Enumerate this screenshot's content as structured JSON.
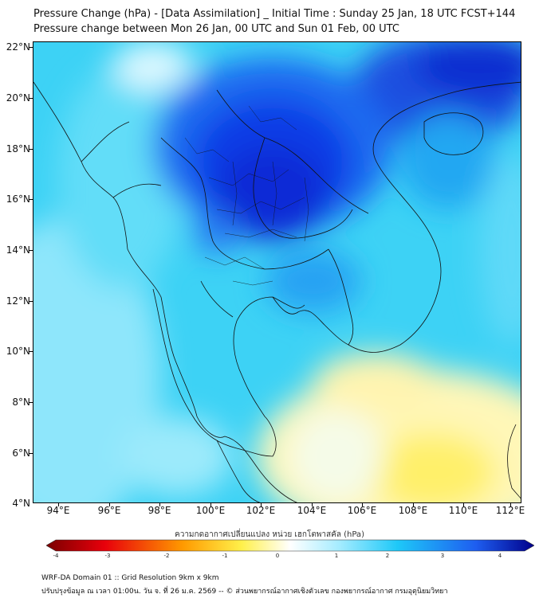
{
  "header": {
    "title_line1": "Pressure Change (hPa) - [Data Assimilation] _ Initial Time : Sunday 25 Jan, 18 UTC FCST+144",
    "title_line2": "Pressure change between Mon 26 Jan, 00 UTC and Sun 01 Feb, 00 UTC"
  },
  "map": {
    "lat_labels": [
      "22°N",
      "20°N",
      "18°N",
      "16°N",
      "14°N",
      "12°N",
      "10°N",
      "8°N",
      "6°N",
      "4°N"
    ],
    "lon_labels": [
      "94°E",
      "96°E",
      "98°E",
      "100°E",
      "102°E",
      "104°E",
      "106°E",
      "108°E",
      "110°E",
      "112°E"
    ]
  },
  "colorbar": {
    "label": "ความกดอากาศเปลี่ยนแปลง หน่วย เฮกโตพาสคัล (hPa)",
    "tick_labels": [
      "-4",
      "-3",
      "-2",
      "-1",
      "0",
      "1",
      "2",
      "3",
      "4"
    ],
    "colors": {
      "min": "#7a0000",
      "red": "#e8000b",
      "orange": "#ff9a00",
      "yellow": "#fff04a",
      "zero": "#ffffff",
      "light_blue": "#a5ecff",
      "cyan": "#1ec8f8",
      "blue": "#1e5ef0",
      "max": "#00008b"
    }
  },
  "footer": {
    "line1": "WRF-DA Domain 01 :: Grid Resolution 9km x 9km",
    "line2": "ปรับปรุงข้อมูล ณ เวลา 01:00น. วัน จ. ที่ 26 ม.ค. 2569 -- © ส่วนพยากรณ์อากาศเชิงตัวเลข กองพยากรณ์อากาศ กรมอุตุนิยมวิทยา"
  }
}
